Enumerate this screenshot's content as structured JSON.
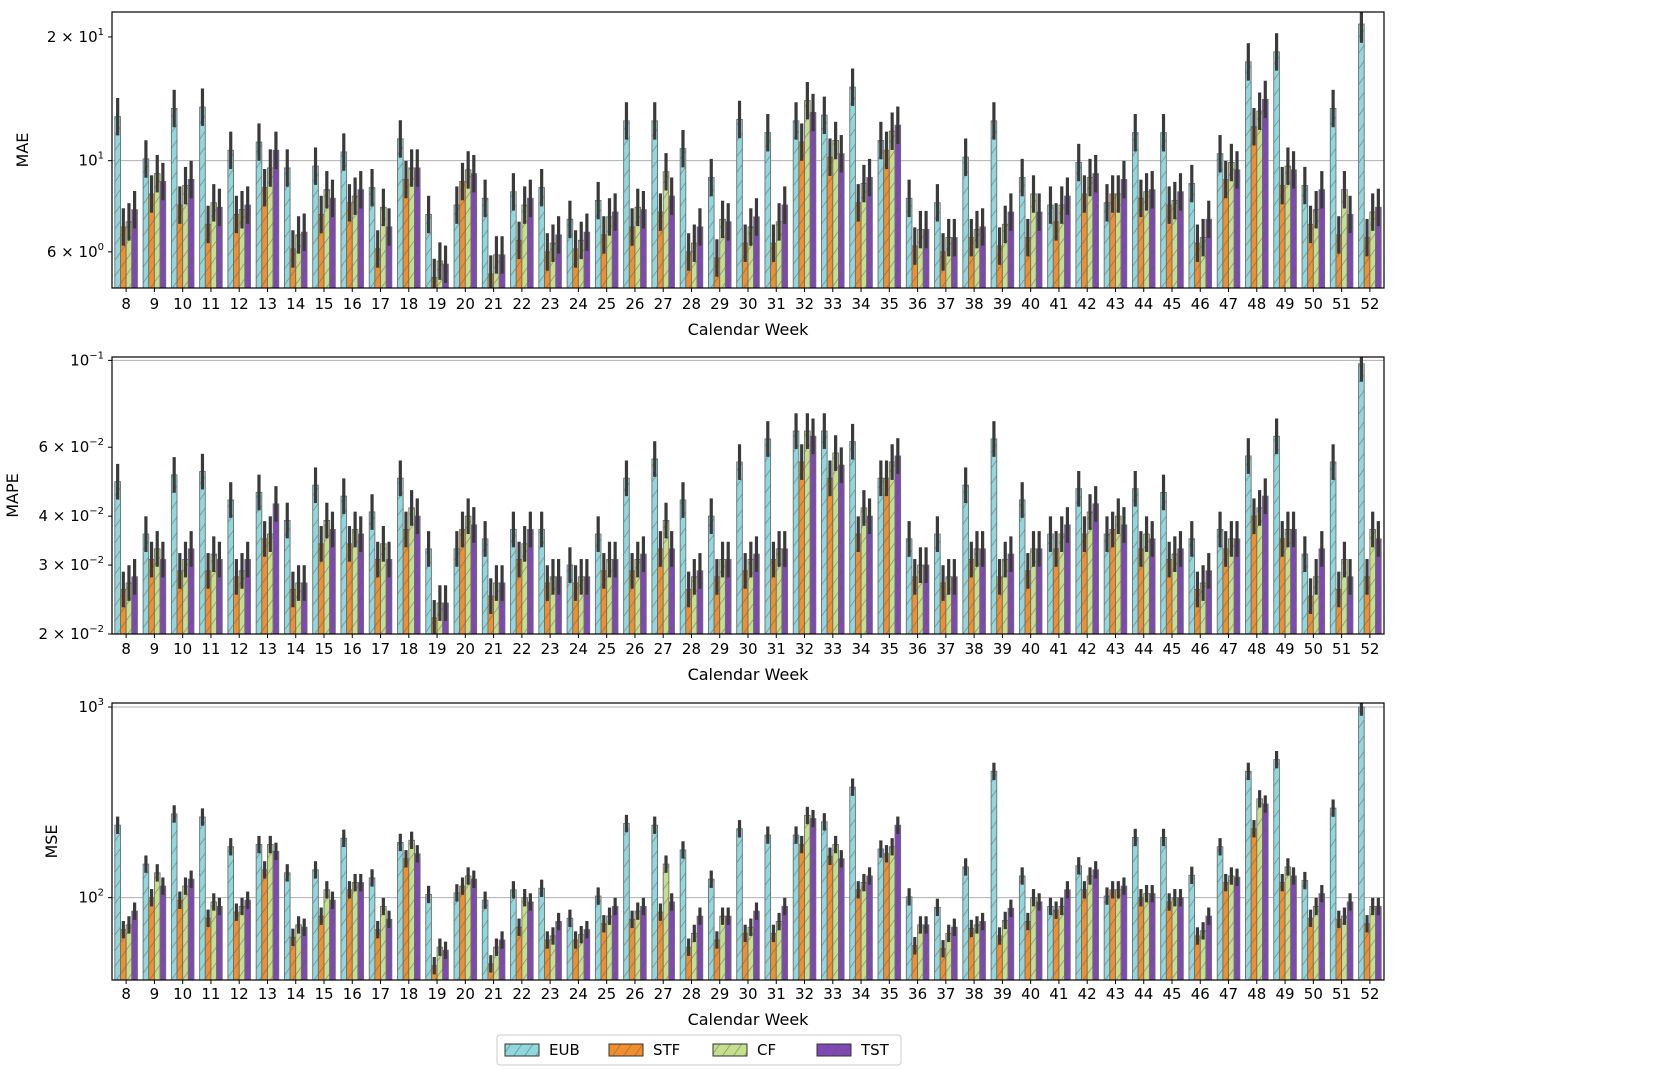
{
  "chart_data": [
    {
      "type": "bar",
      "ylabel": "MAE",
      "xlabel": "Calendar Week",
      "yscale": "log",
      "ylim": [
        4.9,
        23
      ],
      "ticks": [
        {
          "v": 6,
          "b": "6 × 10",
          "e": "0"
        },
        {
          "v": 10,
          "b": "10",
          "e": "1"
        },
        {
          "v": 20,
          "b": "2 × 10",
          "e": "1"
        }
      ],
      "grid_lines": [
        10
      ],
      "categories": [
        "8",
        "9",
        "10",
        "11",
        "12",
        "13",
        "14",
        "15",
        "16",
        "17",
        "18",
        "19",
        "20",
        "21",
        "22",
        "23",
        "24",
        "25",
        "26",
        "27",
        "28",
        "29",
        "30",
        "31",
        "32",
        "33",
        "34",
        "35",
        "36",
        "37",
        "38",
        "39",
        "40",
        "41",
        "42",
        "43",
        "44",
        "45",
        "46",
        "47",
        "48",
        "49",
        "50",
        "51",
        "52"
      ],
      "series": [
        {
          "name": "EUB",
          "values": [
            12.8,
            10.1,
            13.4,
            13.5,
            10.6,
            11.1,
            9.6,
            9.7,
            10.5,
            8.6,
            11.3,
            7.4,
            7.8,
            8.1,
            8.4,
            8.6,
            7.2,
            8,
            12.5,
            12.5,
            10.7,
            9.1,
            12.6,
            11.7,
            12.5,
            12.9,
            15.1,
            11.2,
            8.1,
            7.9,
            10.2,
            12.5,
            9.1,
            7.8,
            9.9,
            7.9,
            11.7,
            11.7,
            8.8,
            10.4,
            17.4,
            18.4,
            8.7,
            13.4,
            21.5
          ]
        },
        {
          "name": "STF",
          "values": [
            6.9,
            8.3,
            7.8,
            7,
            7.4,
            8.6,
            6.1,
            7.4,
            7.9,
            6.1,
            9,
            5.2,
            8.9,
            5.3,
            6.4,
            6,
            6.1,
            6.6,
            6.9,
            7.5,
            6,
            5.8,
            6.3,
            6.3,
            11.1,
            10.2,
            7.9,
            10.6,
            6.2,
            6,
            6.5,
            6.2,
            6.5,
            7.1,
            8.3,
            8.3,
            8.1,
            7.8,
            6.3,
            9,
            12.1,
            8.7,
            7,
            6.6,
            6.5
          ]
        },
        {
          "name": "CF",
          "values": [
            7.1,
            9.3,
            8.7,
            7.9,
            7.6,
            9.6,
            6.6,
            8.5,
            8.2,
            7.7,
            9.6,
            5.7,
            9.5,
            5.9,
            7.8,
            6.3,
            6.4,
            7.3,
            7.7,
            9.4,
            6.3,
            7.2,
            6.9,
            7.1,
            14,
            11.2,
            8.8,
            11.8,
            6.8,
            6.5,
            6.8,
            7,
            8.3,
            7.8,
            9.1,
            8.3,
            8.4,
            8,
            6.5,
            9.9,
            13.2,
            9.7,
            7.6,
            8.5,
            7.5
          ]
        },
        {
          "name": "TST",
          "values": [
            7.6,
            8.9,
            9,
            7.7,
            7.8,
            10.6,
            6.7,
            8.1,
            8.5,
            6.9,
            9.6,
            5.6,
            9.3,
            5.9,
            8.1,
            6.6,
            6.7,
            7.5,
            7.6,
            8.2,
            6.9,
            7.1,
            7.3,
            7.8,
            13.1,
            10.4,
            9.1,
            12.2,
            6.8,
            6.5,
            6.9,
            7.5,
            7.5,
            8.2,
            9.3,
            9,
            8.5,
            8.4,
            7.2,
            9.5,
            14.1,
            9.5,
            8.5,
            7.4,
            7.7
          ]
        }
      ]
    },
    {
      "type": "bar",
      "ylabel": "MAPE",
      "xlabel": "Calendar Week",
      "yscale": "log",
      "ylim": [
        0.02,
        0.102
      ],
      "ticks": [
        {
          "v": 0.02,
          "b": "2 × 10",
          "e": "−2"
        },
        {
          "v": 0.03,
          "b": "3 × 10",
          "e": "−2"
        },
        {
          "v": 0.04,
          "b": "4 × 10",
          "e": "−2"
        },
        {
          "v": 0.06,
          "b": "6 × 10",
          "e": "−2"
        },
        {
          "v": 0.1,
          "b": "10",
          "e": "−1"
        }
      ],
      "grid_lines": [
        0.1
      ],
      "categories": [
        "8",
        "9",
        "10",
        "11",
        "12",
        "13",
        "14",
        "15",
        "16",
        "17",
        "18",
        "19",
        "20",
        "21",
        "22",
        "23",
        "24",
        "25",
        "26",
        "27",
        "28",
        "29",
        "30",
        "31",
        "32",
        "33",
        "34",
        "35",
        "36",
        "37",
        "38",
        "39",
        "40",
        "41",
        "42",
        "43",
        "44",
        "45",
        "46",
        "47",
        "48",
        "49",
        "50",
        "51",
        "52"
      ],
      "series": [
        {
          "name": "EUB",
          "values": [
            0.049,
            0.036,
            0.051,
            0.052,
            0.044,
            0.046,
            0.039,
            0.048,
            0.045,
            0.041,
            0.05,
            0.033,
            0.033,
            0.035,
            0.037,
            0.037,
            0.03,
            0.036,
            0.05,
            0.056,
            0.044,
            0.04,
            0.055,
            0.063,
            0.066,
            0.066,
            0.062,
            0.05,
            0.035,
            0.036,
            0.048,
            0.063,
            0.044,
            0.036,
            0.047,
            0.036,
            0.047,
            0.046,
            0.035,
            0.037,
            0.057,
            0.064,
            0.032,
            0.055,
            0.098
          ]
        },
        {
          "name": "STF",
          "values": [
            0.026,
            0.031,
            0.029,
            0.029,
            0.028,
            0.035,
            0.026,
            0.034,
            0.034,
            0.031,
            0.037,
            0.022,
            0.037,
            0.025,
            0.031,
            0.027,
            0.027,
            0.029,
            0.029,
            0.033,
            0.026,
            0.028,
            0.029,
            0.031,
            0.055,
            0.05,
            0.036,
            0.05,
            0.028,
            0.027,
            0.031,
            0.028,
            0.029,
            0.033,
            0.036,
            0.037,
            0.033,
            0.031,
            0.026,
            0.033,
            0.04,
            0.035,
            0.025,
            0.026,
            0.028
          ]
        },
        {
          "name": "CF",
          "values": [
            0.027,
            0.033,
            0.031,
            0.032,
            0.029,
            0.036,
            0.027,
            0.039,
            0.037,
            0.034,
            0.042,
            0.024,
            0.04,
            0.027,
            0.034,
            0.028,
            0.028,
            0.031,
            0.031,
            0.039,
            0.028,
            0.031,
            0.031,
            0.033,
            0.066,
            0.058,
            0.042,
            0.055,
            0.03,
            0.028,
            0.033,
            0.031,
            0.033,
            0.036,
            0.041,
            0.04,
            0.036,
            0.032,
            0.027,
            0.035,
            0.042,
            0.037,
            0.028,
            0.031,
            0.037
          ]
        },
        {
          "name": "TST",
          "values": [
            0.028,
            0.031,
            0.033,
            0.031,
            0.031,
            0.043,
            0.027,
            0.037,
            0.036,
            0.031,
            0.04,
            0.024,
            0.038,
            0.027,
            0.037,
            0.028,
            0.028,
            0.031,
            0.032,
            0.033,
            0.029,
            0.031,
            0.032,
            0.033,
            0.064,
            0.054,
            0.04,
            0.057,
            0.03,
            0.028,
            0.033,
            0.032,
            0.033,
            0.038,
            0.043,
            0.038,
            0.035,
            0.033,
            0.029,
            0.035,
            0.045,
            0.037,
            0.033,
            0.028,
            0.035
          ]
        }
      ]
    },
    {
      "type": "bar",
      "ylabel": "MSE",
      "xlabel": "Calendar Week",
      "yscale": "log",
      "ylim": [
        37,
        1050
      ],
      "ticks": [
        {
          "v": 100,
          "b": "10",
          "e": "2"
        },
        {
          "v": 1000,
          "b": "10",
          "e": "3"
        }
      ],
      "grid_lines": [
        100,
        1000
      ],
      "categories": [
        "8",
        "9",
        "10",
        "11",
        "12",
        "13",
        "14",
        "15",
        "16",
        "17",
        "18",
        "19",
        "20",
        "21",
        "22",
        "23",
        "24",
        "25",
        "26",
        "27",
        "28",
        "29",
        "30",
        "31",
        "32",
        "33",
        "34",
        "35",
        "36",
        "37",
        "38",
        "39",
        "40",
        "41",
        "42",
        "43",
        "44",
        "45",
        "46",
        "47",
        "48",
        "49",
        "50",
        "51",
        "52"
      ],
      "series": [
        {
          "name": "EUB",
          "values": [
            240,
            150,
            275,
            265,
            185,
            190,
            135,
            140,
            205,
            127,
            195,
            104,
            106,
            97,
            110,
            112,
            78,
            102,
            245,
            240,
            178,
            125,
            230,
            213,
            213,
            250,
            380,
            180,
            101,
            89,
            145,
            460,
            130,
            90,
            147,
            102,
            207,
            207,
            131,
            185,
            460,
            530,
            123,
            295,
            1000
          ]
        },
        {
          "name": "STF",
          "values": [
            68,
            100,
            97,
            78,
            84,
            140,
            62,
            80,
            110,
            68,
            160,
            44,
            115,
            45,
            70,
            60,
            60,
            73,
            77,
            84,
            55,
            60,
            65,
            65,
            190,
            165,
            110,
            170,
            56,
            54,
            69,
            63,
            75,
            86,
            110,
            110,
            100,
            95,
            63,
            120,
            230,
            120,
            78,
            77,
            73
          ]
        },
        {
          "name": "CF",
          "values": [
            72,
            135,
            115,
            95,
            90,
            190,
            72,
            110,
            120,
            90,
            200,
            55,
            130,
            55,
            100,
            63,
            64,
            80,
            85,
            150,
            65,
            80,
            70,
            75,
            270,
            190,
            120,
            185,
            72,
            65,
            72,
            76,
            100,
            90,
            130,
            110,
            105,
            100,
            67,
            130,
            330,
            145,
            90,
            80,
            90
          ]
        },
        {
          "name": "TST",
          "values": [
            85,
            115,
            125,
            90,
            97,
            175,
            70,
            97,
            120,
            77,
            170,
            53,
            125,
            60,
            95,
            75,
            68,
            90,
            90,
            95,
            80,
            80,
            85,
            90,
            260,
            160,
            130,
            240,
            72,
            70,
            75,
            88,
            95,
            110,
            140,
            115,
            105,
            100,
            80,
            128,
            310,
            130,
            105,
            95,
            90
          ]
        }
      ]
    }
  ],
  "legend": [
    {
      "name": "EUB",
      "color": "#8fd8de"
    },
    {
      "name": "STF",
      "color": "#f28e2b"
    },
    {
      "name": "CF",
      "color": "#c5df8d"
    },
    {
      "name": "TST",
      "color": "#8048b5"
    }
  ],
  "colors": {
    "EUB": "#8fd8de",
    "STF": "#f28e2b",
    "CF": "#c5df8d",
    "TST": "#8048b5",
    "errorbar": "#3a3a3a",
    "grid": "#b0b0b0"
  }
}
